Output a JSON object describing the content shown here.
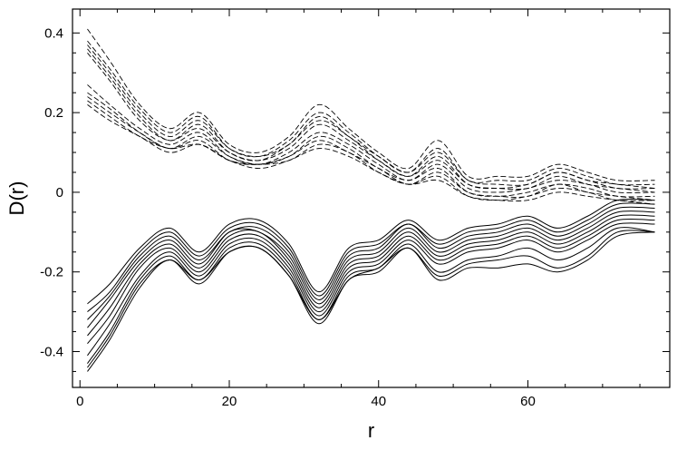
{
  "chart_data": {
    "type": "line",
    "title": "",
    "xlabel": "r",
    "ylabel": "D(r)",
    "xlim": [
      -1,
      79
    ],
    "ylim": [
      -0.49,
      0.46
    ],
    "x_ticks": [
      {
        "value": 0,
        "label": "0"
      },
      {
        "value": 20,
        "label": "20"
      },
      {
        "value": 40,
        "label": "40"
      },
      {
        "value": 60,
        "label": "60"
      }
    ],
    "y_ticks": [
      {
        "value": 0.4,
        "label": "0.4"
      },
      {
        "value": 0.2,
        "label": "0.2"
      },
      {
        "value": 0,
        "label": "0"
      },
      {
        "value": -0.2,
        "label": "-0.2"
      },
      {
        "value": -0.4,
        "label": "-0.4"
      }
    ],
    "grid": false,
    "legend": "none",
    "colors": {
      "line": "#000000",
      "axis": "#000000"
    },
    "x": [
      1,
      4,
      8,
      12,
      16,
      20,
      24,
      28,
      32,
      36,
      40,
      44,
      48,
      52,
      56,
      60,
      64,
      68,
      72,
      77
    ],
    "series": [
      {
        "style": "dashed",
        "values": [
          0.41,
          0.33,
          0.22,
          0.16,
          0.2,
          0.12,
          0.1,
          0.14,
          0.22,
          0.16,
          0.1,
          0.06,
          0.13,
          0.04,
          0.04,
          0.04,
          0.07,
          0.05,
          0.03,
          0.03
        ]
      },
      {
        "style": "dashed",
        "values": [
          0.38,
          0.31,
          0.21,
          0.15,
          0.19,
          0.11,
          0.09,
          0.13,
          0.2,
          0.15,
          0.09,
          0.05,
          0.11,
          0.03,
          0.03,
          0.03,
          0.06,
          0.04,
          0.02,
          0.02
        ]
      },
      {
        "style": "dashed",
        "values": [
          0.37,
          0.3,
          0.2,
          0.14,
          0.18,
          0.11,
          0.09,
          0.12,
          0.19,
          0.14,
          0.09,
          0.05,
          0.1,
          0.03,
          0.02,
          0.02,
          0.05,
          0.03,
          0.02,
          0.01
        ]
      },
      {
        "style": "dashed",
        "values": [
          0.36,
          0.29,
          0.19,
          0.13,
          0.17,
          0.1,
          0.08,
          0.12,
          0.18,
          0.14,
          0.08,
          0.04,
          0.09,
          0.02,
          0.01,
          0.02,
          0.05,
          0.03,
          0.01,
          0.01
        ]
      },
      {
        "style": "dashed",
        "values": [
          0.35,
          0.28,
          0.18,
          0.13,
          0.16,
          0.1,
          0.08,
          0.11,
          0.17,
          0.13,
          0.08,
          0.04,
          0.08,
          0.02,
          0.01,
          0.01,
          0.04,
          0.02,
          0.01,
          0.0
        ]
      },
      {
        "style": "dashed",
        "values": [
          0.27,
          0.22,
          0.16,
          0.12,
          0.15,
          0.09,
          0.07,
          0.1,
          0.15,
          0.12,
          0.07,
          0.03,
          0.07,
          0.01,
          0.0,
          0.01,
          0.03,
          0.02,
          0.0,
          0.0
        ]
      },
      {
        "style": "dashed",
        "values": [
          0.25,
          0.21,
          0.15,
          0.11,
          0.14,
          0.09,
          0.07,
          0.09,
          0.14,
          0.11,
          0.06,
          0.03,
          0.06,
          0.0,
          -0.01,
          0.0,
          0.02,
          0.01,
          -0.01,
          -0.01
        ]
      },
      {
        "style": "dashed",
        "values": [
          0.24,
          0.2,
          0.15,
          0.11,
          0.13,
          0.08,
          0.07,
          0.09,
          0.13,
          0.1,
          0.06,
          0.02,
          0.05,
          0.0,
          -0.01,
          -0.01,
          0.02,
          0.0,
          -0.01,
          -0.02
        ]
      },
      {
        "style": "dashed",
        "values": [
          0.23,
          0.19,
          0.14,
          0.11,
          0.12,
          0.08,
          0.07,
          0.08,
          0.12,
          0.1,
          0.05,
          0.02,
          0.04,
          -0.01,
          -0.02,
          -0.01,
          0.01,
          0.0,
          -0.02,
          -0.02
        ]
      },
      {
        "style": "dashed",
        "values": [
          0.22,
          0.18,
          0.14,
          0.1,
          0.12,
          0.08,
          0.06,
          0.08,
          0.11,
          0.09,
          0.05,
          0.02,
          0.03,
          -0.01,
          -0.02,
          -0.02,
          0.0,
          -0.01,
          -0.02,
          -0.03
        ]
      },
      {
        "style": "solid",
        "values": [
          -0.28,
          -0.23,
          -0.14,
          -0.09,
          -0.15,
          -0.08,
          -0.07,
          -0.13,
          -0.25,
          -0.14,
          -0.12,
          -0.07,
          -0.12,
          -0.09,
          -0.08,
          -0.06,
          -0.09,
          -0.06,
          -0.02,
          -0.02
        ]
      },
      {
        "style": "solid",
        "values": [
          -0.3,
          -0.25,
          -0.15,
          -0.1,
          -0.16,
          -0.09,
          -0.08,
          -0.14,
          -0.26,
          -0.15,
          -0.13,
          -0.08,
          -0.13,
          -0.1,
          -0.09,
          -0.07,
          -0.1,
          -0.07,
          -0.03,
          -0.03
        ]
      },
      {
        "style": "solid",
        "values": [
          -0.32,
          -0.26,
          -0.16,
          -0.11,
          -0.17,
          -0.1,
          -0.09,
          -0.15,
          -0.27,
          -0.16,
          -0.14,
          -0.08,
          -0.14,
          -0.11,
          -0.1,
          -0.08,
          -0.11,
          -0.08,
          -0.04,
          -0.04
        ]
      },
      {
        "style": "solid",
        "values": [
          -0.34,
          -0.27,
          -0.17,
          -0.12,
          -0.18,
          -0.1,
          -0.1,
          -0.16,
          -0.28,
          -0.17,
          -0.15,
          -0.09,
          -0.15,
          -0.12,
          -0.11,
          -0.09,
          -0.12,
          -0.09,
          -0.05,
          -0.05
        ]
      },
      {
        "style": "solid",
        "values": [
          -0.36,
          -0.29,
          -0.18,
          -0.13,
          -0.19,
          -0.11,
          -0.1,
          -0.17,
          -0.29,
          -0.18,
          -0.16,
          -0.1,
          -0.16,
          -0.13,
          -0.12,
          -0.1,
          -0.13,
          -0.1,
          -0.06,
          -0.06
        ]
      },
      {
        "style": "solid",
        "values": [
          -0.38,
          -0.31,
          -0.19,
          -0.14,
          -0.2,
          -0.12,
          -0.11,
          -0.18,
          -0.3,
          -0.19,
          -0.17,
          -0.11,
          -0.17,
          -0.14,
          -0.13,
          -0.11,
          -0.14,
          -0.11,
          -0.07,
          -0.07
        ]
      },
      {
        "style": "solid",
        "values": [
          -0.41,
          -0.33,
          -0.21,
          -0.15,
          -0.21,
          -0.13,
          -0.12,
          -0.19,
          -0.31,
          -0.2,
          -0.18,
          -0.12,
          -0.18,
          -0.15,
          -0.14,
          -0.12,
          -0.15,
          -0.12,
          -0.08,
          -0.08
        ]
      },
      {
        "style": "solid",
        "values": [
          -0.43,
          -0.35,
          -0.22,
          -0.16,
          -0.22,
          -0.14,
          -0.13,
          -0.2,
          -0.32,
          -0.21,
          -0.19,
          -0.13,
          -0.2,
          -0.17,
          -0.16,
          -0.14,
          -0.17,
          -0.14,
          -0.09,
          -0.1
        ]
      },
      {
        "style": "solid",
        "values": [
          -0.44,
          -0.36,
          -0.23,
          -0.17,
          -0.22,
          -0.15,
          -0.14,
          -0.21,
          -0.32,
          -0.22,
          -0.19,
          -0.14,
          -0.21,
          -0.18,
          -0.17,
          -0.16,
          -0.19,
          -0.16,
          -0.1,
          -0.1
        ]
      },
      {
        "style": "solid",
        "values": [
          -0.45,
          -0.37,
          -0.24,
          -0.17,
          -0.23,
          -0.15,
          -0.14,
          -0.21,
          -0.33,
          -0.22,
          -0.2,
          -0.14,
          -0.22,
          -0.19,
          -0.19,
          -0.18,
          -0.2,
          -0.17,
          -0.11,
          -0.1
        ]
      }
    ]
  }
}
